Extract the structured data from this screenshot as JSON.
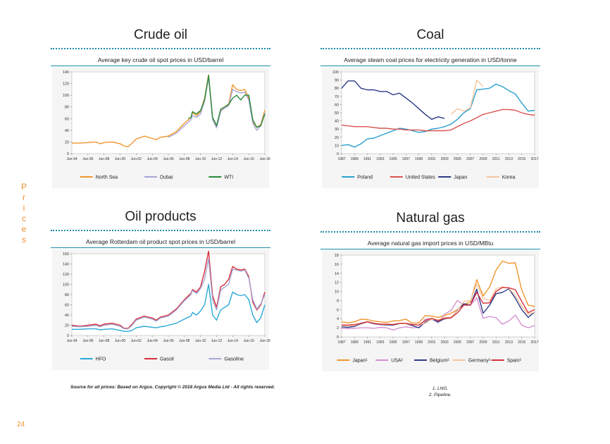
{
  "side_label": "Prices",
  "page_number": "24",
  "source": "Source for all prices: Based on Argus. Copyright © 2018 Argus Media Ltd - All rights reserved.",
  "notes": [
    "1. LNG.",
    "2. Pipeline."
  ],
  "chart_data": [
    {
      "id": "crude",
      "type": "line",
      "title": "Crude oil",
      "subtitle": "Average key crude oil spot prices in USD/barrel",
      "ylim": [
        0,
        140
      ],
      "yticks": [
        0,
        20,
        40,
        60,
        80,
        100,
        120,
        140
      ],
      "xticks": [
        "Jun-94",
        "Jun-96",
        "Jun-98",
        "Jun-00",
        "Jun-02",
        "Jun-04",
        "Jun-06",
        "Jun-08",
        "Jun-10",
        "Jun-12",
        "Jun-14",
        "Jun-16",
        "Jun-18"
      ],
      "x": [
        0,
        1,
        2,
        3,
        3.5,
        4,
        5,
        6,
        6.5,
        7,
        7.5,
        8,
        9,
        10,
        10.5,
        11,
        11.5,
        12,
        13,
        14,
        14.5,
        14.8,
        15,
        15.5,
        16,
        16.5,
        17,
        17.5,
        18,
        18.5,
        19,
        19.5,
        20,
        20.5,
        21,
        21.5,
        22,
        22.5,
        23,
        23.5,
        24
      ],
      "series": [
        {
          "name": "North Sea",
          "color": "#f0962c",
          "values": [
            18,
            18,
            19,
            20,
            17,
            19,
            20,
            17,
            13,
            12,
            18,
            25,
            30,
            26,
            24,
            28,
            29,
            30,
            38,
            52,
            58,
            62,
            70,
            65,
            72,
            95,
            135,
            60,
            45,
            75,
            80,
            85,
            118,
            110,
            108,
            110,
            95,
            55,
            45,
            50,
            75
          ]
        },
        {
          "name": "Dubai",
          "color": "#a5a5d6",
          "values": [
            null,
            null,
            null,
            null,
            null,
            null,
            null,
            null,
            null,
            null,
            null,
            null,
            null,
            null,
            null,
            null,
            null,
            28,
            35,
            48,
            54,
            58,
            65,
            62,
            68,
            90,
            130,
            58,
            44,
            72,
            78,
            82,
            110,
            106,
            104,
            105,
            92,
            52,
            40,
            48,
            70
          ]
        },
        {
          "name": "WTI",
          "color": "#2a8a3a",
          "values": [
            null,
            null,
            null,
            null,
            null,
            null,
            null,
            null,
            null,
            null,
            null,
            null,
            null,
            null,
            null,
            null,
            null,
            null,
            null,
            null,
            60,
            62,
            72,
            68,
            74,
            92,
            134,
            62,
            48,
            76,
            80,
            84,
            95,
            100,
            92,
            100,
            100,
            58,
            45,
            48,
            68
          ]
        }
      ]
    },
    {
      "id": "coal",
      "type": "line",
      "title": "Coal",
      "subtitle": "Average steam coal prices for electricity generation in USD/tonne",
      "ylim": [
        0,
        100
      ],
      "yticks": [
        0,
        10,
        20,
        30,
        40,
        50,
        60,
        70,
        80,
        90,
        100
      ],
      "xticks": [
        "1987",
        "1989",
        "1991",
        "1993",
        "1995",
        "1997",
        "1999",
        "2001",
        "2003",
        "2005",
        "2007",
        "2009",
        "2011",
        "2013",
        "2015",
        "2017"
      ],
      "x": [
        1987,
        1988,
        1989,
        1990,
        1991,
        1992,
        1993,
        1994,
        1995,
        1996,
        1997,
        1998,
        1999,
        2000,
        2001,
        2002,
        2003,
        2004,
        2005,
        2006,
        2007,
        2008,
        2009,
        2010,
        2011,
        2012,
        2013,
        2014,
        2015,
        2016,
        2017
      ],
      "series": [
        {
          "name": "Poland",
          "color": "#2a9fd0",
          "values": [
            10,
            11,
            8,
            12,
            18,
            19,
            22,
            25,
            28,
            31,
            30,
            28,
            26,
            27,
            30,
            31,
            33,
            36,
            42,
            50,
            55,
            78,
            79,
            80,
            85,
            82,
            77,
            73,
            62,
            52,
            53
          ]
        },
        {
          "name": "United States",
          "color": "#d9534f",
          "values": [
            35,
            34,
            33,
            33,
            33,
            32,
            31,
            31,
            30,
            30,
            29,
            29,
            29,
            28,
            28,
            28,
            28,
            29,
            33,
            37,
            40,
            44,
            48,
            50,
            52,
            54,
            54,
            53,
            50,
            48,
            47
          ]
        },
        {
          "name": "Japan",
          "color": "#2b3a86",
          "values": [
            80,
            89,
            89,
            80,
            78,
            78,
            76,
            76,
            72,
            74,
            68,
            62,
            55,
            48,
            42,
            45,
            43,
            null,
            null,
            null,
            null,
            null,
            null,
            null,
            null,
            null,
            null,
            null,
            null,
            null,
            null
          ]
        },
        {
          "name": "Korea",
          "color": "#f5c6a0",
          "values": [
            null,
            null,
            null,
            null,
            null,
            null,
            null,
            null,
            null,
            null,
            null,
            null,
            null,
            null,
            null,
            null,
            null,
            48,
            55,
            52,
            56,
            90,
            82,
            null,
            null,
            null,
            null,
            null,
            null,
            null,
            null
          ]
        }
      ]
    },
    {
      "id": "oilproducts",
      "type": "line",
      "title": "Oil products",
      "subtitle": "Average Rotterdam oil product spot prices in USD/barrel",
      "ylim": [
        0,
        160
      ],
      "yticks": [
        0,
        20,
        40,
        60,
        80,
        100,
        120,
        140,
        160
      ],
      "xticks": [
        "Jun-94",
        "Jun-96",
        "Jun-98",
        "Jun-00",
        "Jun-02",
        "Jun-04",
        "Jun-06",
        "Jun-08",
        "Jun-10",
        "Jun-12",
        "Jun-14",
        "Jun-16",
        "Jun-18"
      ],
      "x": [
        0,
        1,
        2,
        3,
        3.5,
        4,
        5,
        6,
        6.5,
        7,
        7.5,
        8,
        9,
        10,
        10.5,
        11,
        11.5,
        12,
        13,
        14,
        14.5,
        14.8,
        15,
        15.5,
        16,
        16.5,
        17,
        17.5,
        18,
        18.5,
        19,
        19.5,
        20,
        20.5,
        21,
        21.5,
        22,
        22.5,
        23,
        23.5,
        24
      ],
      "series": [
        {
          "name": "HFO",
          "color": "#2aa8d8",
          "values": [
            12,
            12,
            13,
            13,
            11,
            12,
            13,
            10,
            8,
            8,
            10,
            15,
            18,
            16,
            15,
            17,
            18,
            20,
            24,
            32,
            36,
            38,
            45,
            40,
            48,
            60,
            100,
            40,
            30,
            50,
            55,
            60,
            85,
            80,
            78,
            80,
            70,
            40,
            25,
            35,
            60
          ]
        },
        {
          "name": "Gasoil",
          "color": "#d62f3a",
          "values": [
            20,
            18,
            20,
            22,
            19,
            22,
            24,
            20,
            14,
            14,
            22,
            32,
            38,
            34,
            30,
            36,
            38,
            40,
            52,
            70,
            78,
            82,
            90,
            85,
            95,
            125,
            165,
            78,
            55,
            95,
            100,
            110,
            135,
            130,
            128,
            130,
            115,
            65,
            50,
            60,
            85
          ]
        },
        {
          "name": "Gasoline",
          "color": "#a5a5d6",
          "values": [
            18,
            17,
            18,
            20,
            17,
            20,
            22,
            18,
            13,
            13,
            20,
            30,
            36,
            32,
            28,
            34,
            36,
            38,
            50,
            68,
            75,
            80,
            88,
            82,
            92,
            110,
            150,
            70,
            50,
            88,
            95,
            100,
            130,
            128,
            126,
            128,
            112,
            70,
            52,
            62,
            80
          ]
        }
      ]
    },
    {
      "id": "gas",
      "type": "line",
      "title": "Natural gas",
      "subtitle": "Average natural gas import prices in USD/MBtu",
      "ylim": [
        0,
        18
      ],
      "yticks": [
        0,
        2,
        4,
        6,
        8,
        10,
        12,
        14,
        16,
        18
      ],
      "xticks": [
        "1987",
        "1989",
        "1991",
        "1993",
        "1995",
        "1997",
        "1999",
        "2001",
        "2003",
        "2005",
        "2007",
        "2009",
        "2011",
        "2013",
        "2015",
        "2017"
      ],
      "x": [
        1987,
        1988,
        1989,
        1990,
        1991,
        1992,
        1993,
        1994,
        1995,
        1996,
        1997,
        1998,
        1999,
        2000,
        2001,
        2002,
        2003,
        2004,
        2005,
        2006,
        2007,
        2008,
        2009,
        2010,
        2011,
        2012,
        2013,
        2014,
        2015,
        2016,
        2017
      ],
      "series": [
        {
          "name": "Japan¹",
          "color": "#f0962c",
          "values": [
            3.3,
            3.1,
            3.3,
            3.9,
            3.8,
            3.5,
            3.3,
            3.2,
            3.5,
            3.6,
            3.9,
            3.0,
            3.1,
            4.7,
            4.6,
            4.3,
            4.7,
            5.2,
            6.0,
            7.1,
            7.7,
            12.6,
            9.0,
            11.0,
            14.7,
            16.7,
            16.2,
            16.3,
            10.3,
            7.0,
            6.7
          ]
        },
        {
          "name": "USA²",
          "color": "#d48fd0",
          "values": [
            1.9,
            1.8,
            1.9,
            2.0,
            2.0,
            1.9,
            2.1,
            2.0,
            1.5,
            2.0,
            2.2,
            2.0,
            2.1,
            3.9,
            4.0,
            3.1,
            5.0,
            5.8,
            8.0,
            7.0,
            7.0,
            8.6,
            4.1,
            4.5,
            4.2,
            2.8,
            3.5,
            4.8,
            2.6,
            2.0,
            2.5
          ]
        },
        {
          "name": "Belgium²",
          "color": "#2b3a86",
          "values": [
            2.2,
            2.1,
            2.3,
            2.9,
            3.3,
            2.9,
            2.7,
            2.6,
            2.6,
            2.9,
            2.9,
            2.5,
            2.0,
            3.2,
            3.9,
            3.3,
            4.0,
            4.2,
            5.9,
            7.3,
            7.0,
            10.5,
            5.2,
            7.0,
            9.5,
            9.8,
            10.6,
            8.5,
            6.0,
            4.3,
            5.5
          ]
        },
        {
          "name": "Germany²",
          "color": "#f5c6a0",
          "values": [
            2.5,
            2.4,
            2.5,
            3.0,
            3.4,
            3.0,
            2.8,
            2.7,
            2.8,
            2.9,
            2.9,
            2.7,
            2.6,
            3.0,
            3.9,
            3.7,
            4.3,
            4.3,
            5.8,
            7.8,
            8.0,
            11.6,
            8.5,
            8.0,
            10.6,
            11.0,
            10.7,
            9.1,
            6.7,
            4.9,
            5.5
          ]
        },
        {
          "name": "Spain²",
          "color": "#d62f3a",
          "values": [
            2.6,
            2.6,
            2.7,
            3.0,
            3.3,
            3.0,
            2.8,
            2.8,
            2.7,
            3.0,
            3.0,
            2.7,
            2.6,
            3.6,
            4.1,
            3.6,
            4.1,
            4.2,
            5.3,
            7.0,
            7.0,
            9.8,
            7.4,
            7.5,
            10.0,
            10.9,
            10.8,
            10.4,
            7.8,
            5.3,
            6.0
          ]
        }
      ]
    }
  ]
}
